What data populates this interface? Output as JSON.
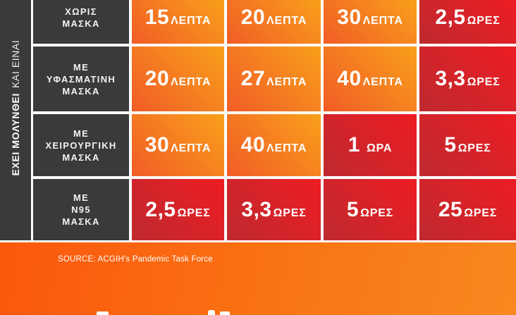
{
  "sidebar": {
    "bold": "ΕΧΕΙ ΜΟΛΥΝΘΕΙ",
    "regular": "ΚΑΙ ΕΙΝΑΙ"
  },
  "table": {
    "rows": [
      {
        "label_lines": [
          "ΧΩΡΙΣ",
          "ΜΑΣΚΑ"
        ],
        "cells": [
          {
            "num": "15",
            "unit": "ΛΕΠΤΑ",
            "style": "orange"
          },
          {
            "num": "20",
            "unit": "ΛΕΠΤΑ",
            "style": "orange"
          },
          {
            "num": "30",
            "unit": "ΛΕΠΤΑ",
            "style": "orange"
          },
          {
            "num": "2,5",
            "unit": "ΩΡΕΣ",
            "style": "red"
          }
        ]
      },
      {
        "label_lines": [
          "ΜΕ",
          "ΥΦΑΣΜΑΤΙΝΗ",
          "ΜΑΣΚΑ"
        ],
        "cells": [
          {
            "num": "20",
            "unit": "ΛΕΠΤΑ",
            "style": "orange"
          },
          {
            "num": "27",
            "unit": "ΛΕΠΤΑ",
            "style": "orange"
          },
          {
            "num": "40",
            "unit": "ΛΕΠΤΑ",
            "style": "orange"
          },
          {
            "num": "3,3",
            "unit": "ΩΡΕΣ",
            "style": "red"
          }
        ]
      },
      {
        "label_lines": [
          "ΜΕ",
          "ΧΕΙΡΟΥΡΓΙΚΗ",
          "ΜΑΣΚΑ"
        ],
        "cells": [
          {
            "num": "30",
            "unit": "ΛΕΠΤΑ",
            "style": "orange"
          },
          {
            "num": "40",
            "unit": "ΛΕΠΤΑ",
            "style": "orange"
          },
          {
            "num": "1",
            "unit": "ΩΡΑ",
            "style": "red",
            "space": true
          },
          {
            "num": "5",
            "unit": "ΩΡΕΣ",
            "style": "red"
          }
        ]
      },
      {
        "label_lines": [
          "ΜΕ",
          "N95",
          "ΜΑΣΚΑ"
        ],
        "cells": [
          {
            "num": "2,5",
            "unit": "ΩΡΕΣ",
            "style": "red"
          },
          {
            "num": "3,3",
            "unit": "ΩΡΕΣ",
            "style": "red"
          },
          {
            "num": "5",
            "unit": "ΩΡΕΣ",
            "style": "red"
          },
          {
            "num": "25",
            "unit": "ΩΡΕΣ",
            "style": "red"
          }
        ]
      }
    ]
  },
  "footer": {
    "source": "SOURCE: ACGIH's Pandemic Task Force"
  },
  "colors": {
    "dark_cell": "#3a3a3b",
    "orange_start": "#f9a01b",
    "orange_end": "#f15c26",
    "red_start": "#ee1c24",
    "red_end": "#bd2a2e",
    "footer_start": "#fb570d",
    "footer_end": "#f8881f",
    "text": "#ffffff"
  },
  "chart_data": {
    "type": "table",
    "side_label": "ΕΧΕΙ ΜΟΛΥΝΘΕΙ ΚΑΙ ΕΙΝΑΙ",
    "row_headers": [
      "ΧΩΡΙΣ ΜΑΣΚΑ",
      "ΜΕ ΥΦΑΣΜΑΤΙΝΗ ΜΑΣΚΑ",
      "ΜΕ ΧΕΙΡΟΥΡΓΙΚΗ ΜΑΣΚΑ",
      "ΜΕ N95 ΜΑΣΚΑ"
    ],
    "rows": [
      [
        "15 ΛΕΠΤΑ",
        "20 ΛΕΠΤΑ",
        "30 ΛΕΠΤΑ",
        "2,5 ΩΡΕΣ"
      ],
      [
        "20 ΛΕΠΤΑ",
        "27 ΛΕΠΤΑ",
        "40 ΛΕΠΤΑ",
        "3,3 ΩΡΕΣ"
      ],
      [
        "30 ΛΕΠΤΑ",
        "40 ΛΕΠΤΑ",
        "1 ΩΡΑ",
        "5 ΩΡΕΣ"
      ],
      [
        "2,5 ΩΡΕΣ",
        "3,3 ΩΡΕΣ",
        "5 ΩΡΕΣ",
        "25 ΩΡΕΣ"
      ]
    ],
    "cell_colors": [
      [
        "orange",
        "orange",
        "orange",
        "red"
      ],
      [
        "orange",
        "orange",
        "orange",
        "red"
      ],
      [
        "orange",
        "orange",
        "red",
        "red"
      ],
      [
        "red",
        "red",
        "red",
        "red"
      ]
    ],
    "source": "SOURCE: ACGIH's Pandemic Task Force"
  }
}
